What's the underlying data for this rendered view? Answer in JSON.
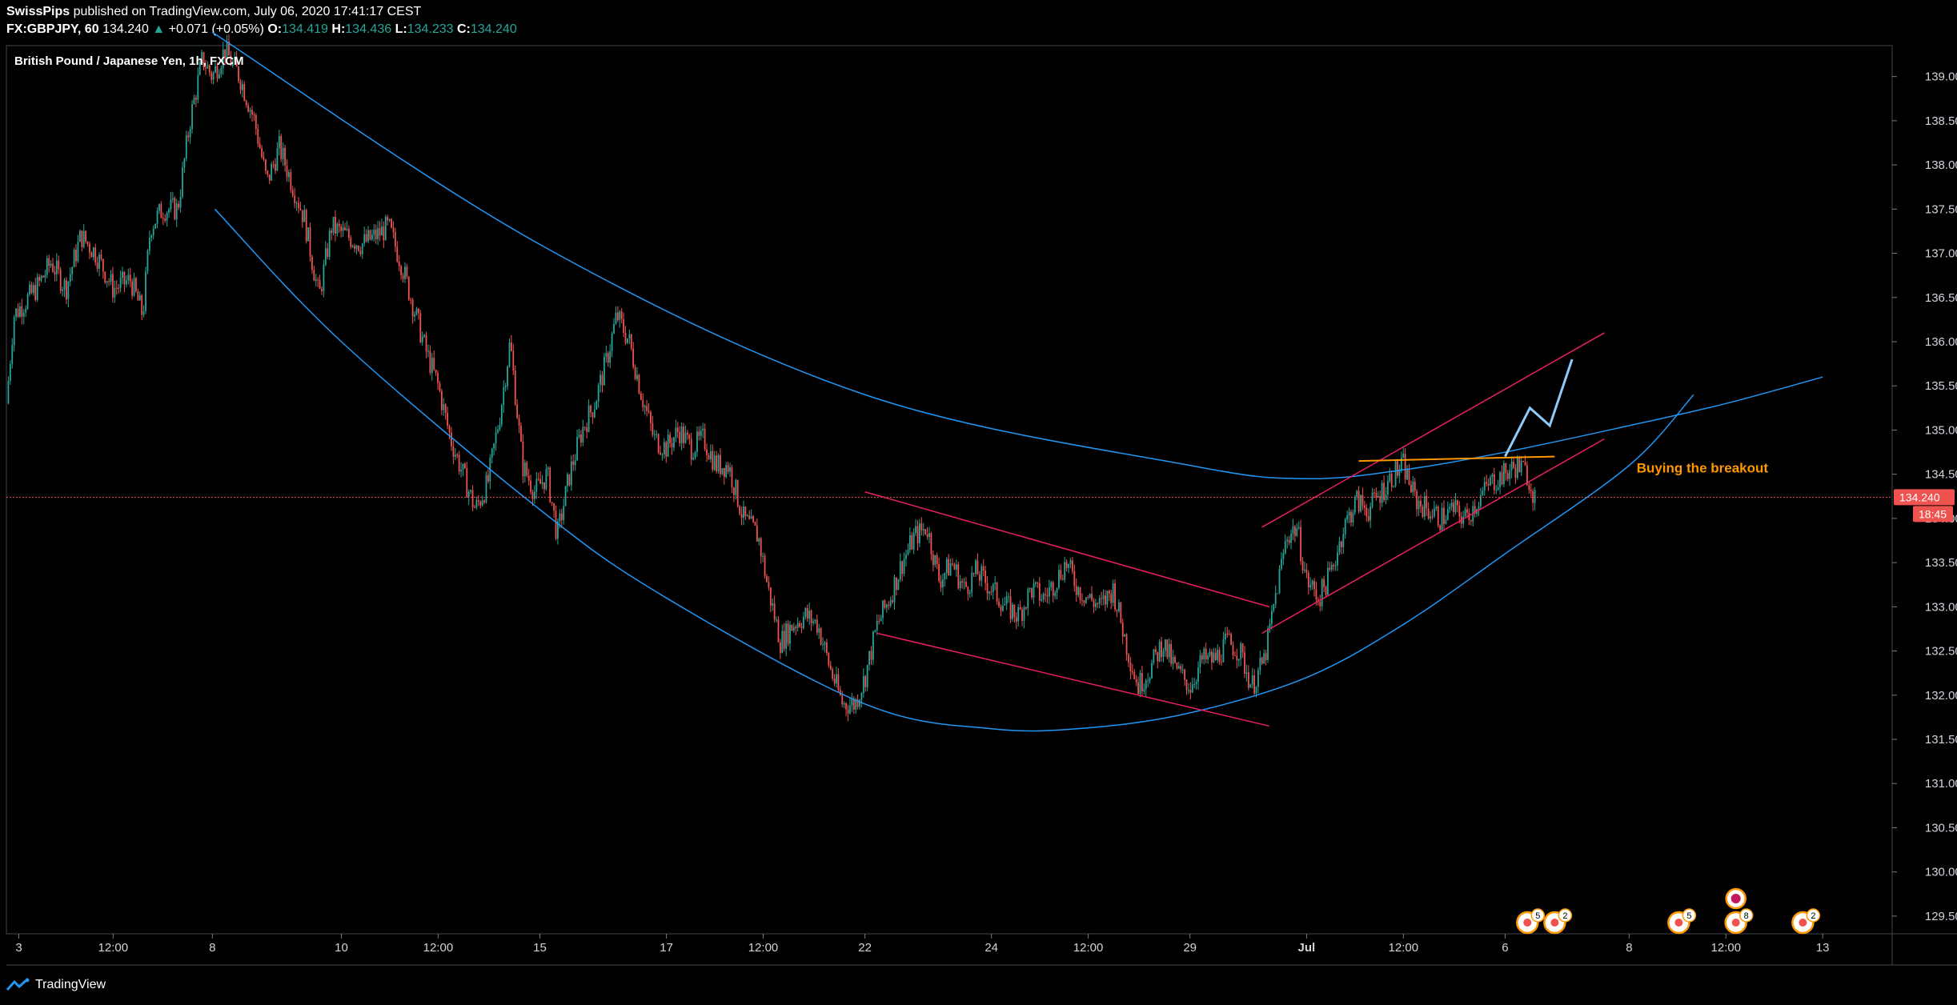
{
  "header": {
    "publisher": "SwissPips",
    "published_text": "published on TradingView.com, July 06, 2020 17:41:17 CEST",
    "symbol": "FX:GBPJPY, 60",
    "last": "134.240",
    "change_arrow": "▲",
    "change": "+0.071 (+0.05%)",
    "o_label": "O:",
    "o_value": "134.419",
    "h_label": "H:",
    "h_value": "134.436",
    "l_label": "L:",
    "l_value": "134.233",
    "c_label": "C:",
    "c_value": "134.240"
  },
  "chart_title": "British Pound / Japanese Yen, 1h, FXCM",
  "price_tag": "134.240",
  "countdown_tag": "18:45",
  "annotation": "Buying the breakout",
  "event_badges": [
    "5",
    "2",
    "5",
    "8",
    "2"
  ],
  "footer": {
    "brand": "TradingView",
    "logo_icon": "tradingview-logo-icon"
  },
  "colors": {
    "background": "#000000",
    "up": "#26a69a",
    "down": "#ef5350",
    "arc": "#2196f3",
    "channel": "#e91e63",
    "resistance": "#ff9800",
    "projection": "#90caf9",
    "annotation": "#ff9800",
    "price_line": "#ef5350"
  },
  "chart_data": {
    "type": "candlestick",
    "symbol": "FX:GBPJPY",
    "timeframe": "1h",
    "source": "FXCM",
    "y_range": [
      129.3,
      139.35
    ],
    "y_ticks": [
      "139.000",
      "138.500",
      "138.000",
      "137.500",
      "137.000",
      "136.500",
      "136.000",
      "135.500",
      "135.000",
      "134.500",
      "134.000",
      "133.500",
      "133.000",
      "132.500",
      "132.000",
      "131.500",
      "131.000",
      "130.500",
      "130.000",
      "129.500"
    ],
    "x_ticks": [
      "3",
      "12:00",
      "8",
      "10",
      "12:00",
      "15",
      "17",
      "12:00",
      "22",
      "24",
      "12:00",
      "29",
      "Jul",
      "12:00",
      "6",
      "8",
      "12:00",
      "13"
    ],
    "x_tick_pos": [
      0.5,
      4.3,
      8.3,
      13.5,
      17.4,
      21.5,
      26.6,
      30.5,
      34.6,
      39.7,
      43.6,
      47.7,
      52.4,
      56.3,
      60.4,
      65.4,
      69.3,
      73.2
    ],
    "x_range": [
      0,
      76
    ],
    "path": [
      [
        0,
        135.3
      ],
      [
        0.3,
        136.3
      ],
      [
        1.2,
        136.6
      ],
      [
        1.8,
        136.9
      ],
      [
        2.4,
        136.6
      ],
      [
        3,
        137.2
      ],
      [
        3.6,
        137.0
      ],
      [
        4.3,
        136.6
      ],
      [
        5,
        136.7
      ],
      [
        5.5,
        136.3
      ],
      [
        5.8,
        137.3
      ],
      [
        6.3,
        137.5
      ],
      [
        6.9,
        137.5
      ],
      [
        7.4,
        138.5
      ],
      [
        7.9,
        139.2
      ],
      [
        8.3,
        139.0
      ],
      [
        8.8,
        139.3
      ],
      [
        9.4,
        139.0
      ],
      [
        10,
        138.5
      ],
      [
        10.5,
        137.8
      ],
      [
        11,
        138.2
      ],
      [
        11.5,
        137.8
      ],
      [
        12,
        137.4
      ],
      [
        12.6,
        136.5
      ],
      [
        13.1,
        137.3
      ],
      [
        13.7,
        137.2
      ],
      [
        14.3,
        137.1
      ],
      [
        14.9,
        137.2
      ],
      [
        15.4,
        137.3
      ],
      [
        15.9,
        136.9
      ],
      [
        16.4,
        136.4
      ],
      [
        16.9,
        135.9
      ],
      [
        17.4,
        135.5
      ],
      [
        17.9,
        134.9
      ],
      [
        18.4,
        134.5
      ],
      [
        18.9,
        134.1
      ],
      [
        19.4,
        134.4
      ],
      [
        19.9,
        135.2
      ],
      [
        20.3,
        136.0
      ],
      [
        20.8,
        134.6
      ],
      [
        21.3,
        134.3
      ],
      [
        21.8,
        134.5
      ],
      [
        22.2,
        133.8
      ],
      [
        22.7,
        134.5
      ],
      [
        23.2,
        135.0
      ],
      [
        23.7,
        135.3
      ],
      [
        24.2,
        135.8
      ],
      [
        24.6,
        136.3
      ],
      [
        25.1,
        136.0
      ],
      [
        25.6,
        135.4
      ],
      [
        26.1,
        134.9
      ],
      [
        26.6,
        134.8
      ],
      [
        27.1,
        135.0
      ],
      [
        27.6,
        134.8
      ],
      [
        28.1,
        134.9
      ],
      [
        28.6,
        134.6
      ],
      [
        29.1,
        134.6
      ],
      [
        29.7,
        134.0
      ],
      [
        30.3,
        133.8
      ],
      [
        30.7,
        133.2
      ],
      [
        31.2,
        132.6
      ],
      [
        31.7,
        132.8
      ],
      [
        32.2,
        132.9
      ],
      [
        32.7,
        132.8
      ],
      [
        33.2,
        132.3
      ],
      [
        33.7,
        131.9
      ],
      [
        34.2,
        131.9
      ],
      [
        34.6,
        132.2
      ],
      [
        35.1,
        132.8
      ],
      [
        35.6,
        133.1
      ],
      [
        36.1,
        133.5
      ],
      [
        36.6,
        133.8
      ],
      [
        37.1,
        133.9
      ],
      [
        37.6,
        133.3
      ],
      [
        38.1,
        133.5
      ],
      [
        38.6,
        133.2
      ],
      [
        39.1,
        133.4
      ],
      [
        39.7,
        133.2
      ],
      [
        40.3,
        133.0
      ],
      [
        40.8,
        132.9
      ],
      [
        41.3,
        133.2
      ],
      [
        41.8,
        133.1
      ],
      [
        42.3,
        133.3
      ],
      [
        42.7,
        133.5
      ],
      [
        43.2,
        133.2
      ],
      [
        43.6,
        133.1
      ],
      [
        44.1,
        133.0
      ],
      [
        44.6,
        133.2
      ],
      [
        45.2,
        132.5
      ],
      [
        45.6,
        132.1
      ],
      [
        46.1,
        132.3
      ],
      [
        46.6,
        132.6
      ],
      [
        47.1,
        132.3
      ],
      [
        47.7,
        132.1
      ],
      [
        48.2,
        132.4
      ],
      [
        48.7,
        132.4
      ],
      [
        49.2,
        132.6
      ],
      [
        49.7,
        132.5
      ],
      [
        50.2,
        132.1
      ],
      [
        50.7,
        132.4
      ],
      [
        51.2,
        133.2
      ],
      [
        51.6,
        133.8
      ],
      [
        52,
        133.9
      ],
      [
        52.4,
        133.3
      ],
      [
        52.9,
        133.1
      ],
      [
        53.4,
        133.4
      ],
      [
        53.9,
        133.9
      ],
      [
        54.4,
        134.2
      ],
      [
        54.9,
        134.1
      ],
      [
        55.4,
        134.3
      ],
      [
        55.9,
        134.5
      ],
      [
        56.3,
        134.6
      ],
      [
        56.8,
        134.2
      ],
      [
        57.3,
        134.1
      ],
      [
        57.8,
        134.0
      ],
      [
        58.3,
        134.1
      ],
      [
        58.8,
        134.0
      ],
      [
        59.3,
        134.2
      ],
      [
        59.8,
        134.4
      ],
      [
        60.4,
        134.5
      ],
      [
        60.9,
        134.6
      ],
      [
        61.3,
        134.5
      ],
      [
        61.6,
        134.24
      ]
    ],
    "lines": [
      {
        "name": "arc-upper",
        "type": "curve",
        "points": [
          [
            8.3,
            139.5
          ],
          [
            21.5,
            137.1
          ],
          [
            34.6,
            135.4
          ],
          [
            47.7,
            134.6
          ],
          [
            52.4,
            134.45
          ],
          [
            56.3,
            134.55
          ],
          [
            60.4,
            134.75
          ],
          [
            65.4,
            135.05
          ],
          [
            69.3,
            135.3
          ],
          [
            73.2,
            135.6
          ]
        ]
      },
      {
        "name": "arc-lower",
        "type": "curve",
        "points": [
          [
            8.4,
            137.5
          ],
          [
            13.5,
            136.0
          ],
          [
            21.5,
            134.1
          ],
          [
            26.6,
            133.1
          ],
          [
            34.6,
            131.9
          ],
          [
            39.7,
            131.62
          ],
          [
            43.6,
            131.63
          ],
          [
            47.7,
            131.8
          ],
          [
            52.4,
            132.2
          ],
          [
            56.3,
            132.8
          ],
          [
            60.4,
            133.6
          ],
          [
            65.4,
            134.6
          ],
          [
            68,
            135.4
          ]
        ]
      },
      {
        "name": "desc-channel-upper",
        "type": "line",
        "points": [
          [
            34.6,
            134.3
          ],
          [
            50.9,
            133.0
          ]
        ]
      },
      {
        "name": "desc-channel-lower",
        "type": "line",
        "points": [
          [
            35.1,
            132.7
          ],
          [
            50.9,
            131.65
          ]
        ]
      },
      {
        "name": "asc-channel-upper",
        "type": "line",
        "points": [
          [
            50.6,
            133.9
          ],
          [
            64.4,
            136.1
          ]
        ]
      },
      {
        "name": "asc-channel-lower",
        "type": "line",
        "points": [
          [
            50.6,
            132.7
          ],
          [
            64.4,
            134.9
          ]
        ]
      },
      {
        "name": "resistance",
        "type": "line",
        "points": [
          [
            54.5,
            134.65
          ],
          [
            62.4,
            134.7
          ]
        ]
      },
      {
        "name": "projection",
        "type": "polyline",
        "points": [
          [
            60.4,
            134.7
          ],
          [
            61.4,
            135.25
          ],
          [
            62.2,
            135.05
          ],
          [
            63.1,
            135.8
          ]
        ]
      }
    ],
    "last_price": 134.24,
    "annotation": "Buying the breakout"
  }
}
